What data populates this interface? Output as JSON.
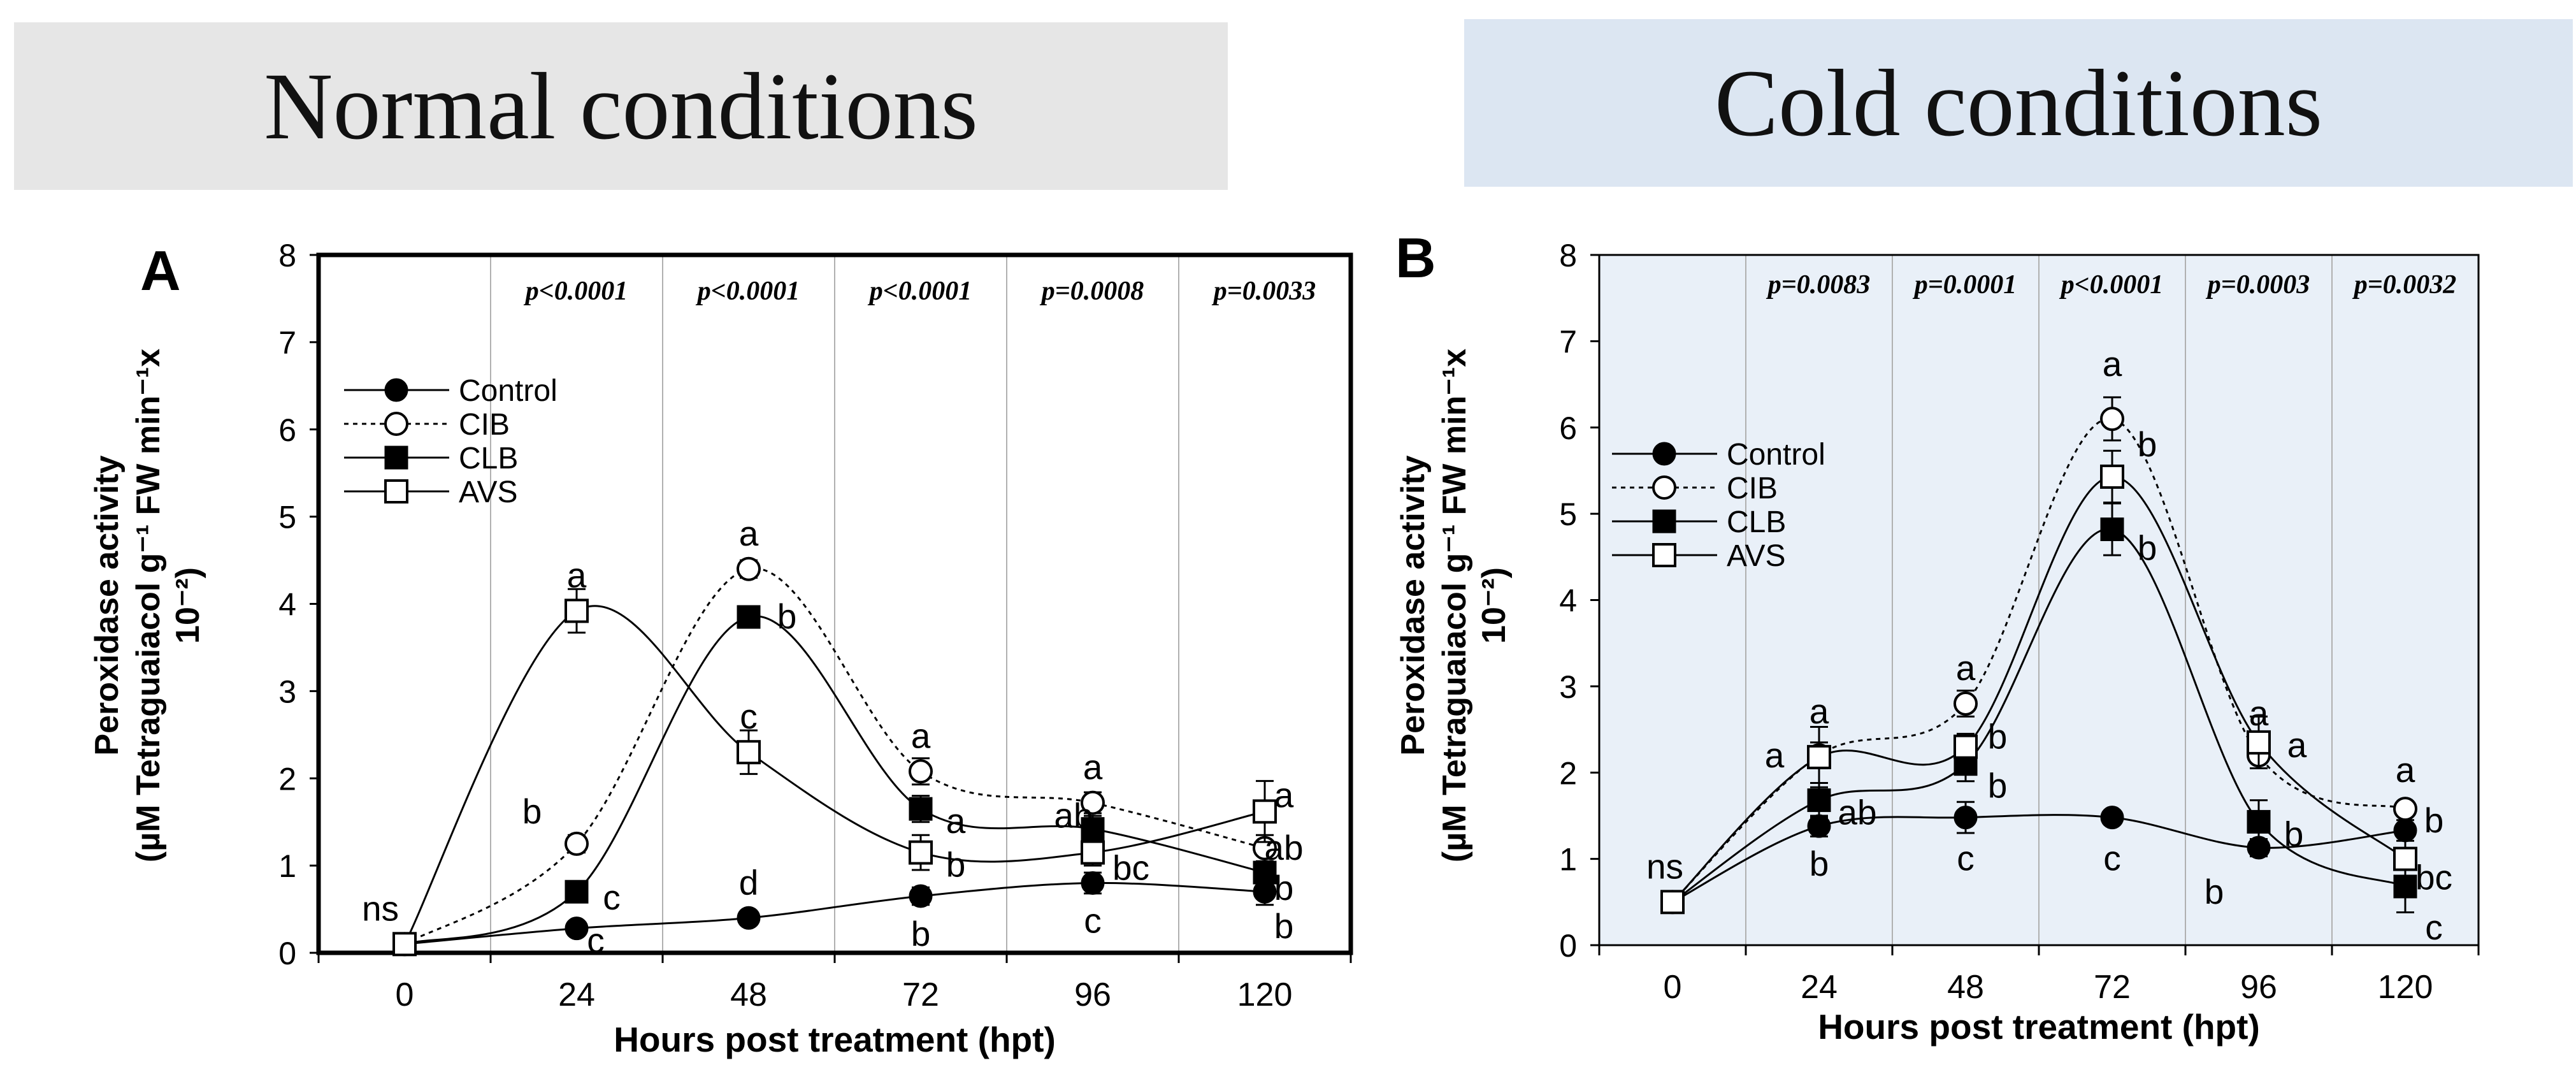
{
  "banners": {
    "left": "Normal conditions",
    "right": "Cold conditions"
  },
  "chart_data": [
    {
      "panel": "A",
      "type": "line",
      "title": "Normal conditions",
      "xlabel": "Hours post treatment (hpt)",
      "ylabel_line1": "Peroxidase activity",
      "ylabel_line2": "(µM Tetraguaiacol g⁻¹ FW min⁻¹x",
      "ylabel_line3": "10⁻²)",
      "ylim": [
        0,
        8
      ],
      "yticks": [
        "0",
        "1",
        "2",
        "3",
        "4",
        "5",
        "6",
        "7",
        "8"
      ],
      "x": [
        0,
        24,
        48,
        72,
        96,
        120
      ],
      "xticks": [
        "0",
        "24",
        "48",
        "72",
        "96",
        "120"
      ],
      "background": "#ffffff",
      "pvalues": [
        "p<0.0001",
        "p<0.0001",
        "p<0.0001",
        "p=0.0008",
        "p=0.0033"
      ],
      "legend_position": "top-left",
      "series": [
        {
          "name": "Control",
          "marker": "filled-circle",
          "line": "solid",
          "values": [
            0.1,
            0.28,
            0.4,
            0.65,
            0.8,
            0.7
          ],
          "errors": [
            0,
            0.06,
            0.08,
            0.1,
            0.12,
            0.15
          ],
          "letters": [
            "ns",
            "c",
            "d",
            "b",
            "c",
            "b"
          ]
        },
        {
          "name": "CIB",
          "marker": "open-circle",
          "line": "dotted",
          "values": [
            0.1,
            1.25,
            4.4,
            2.08,
            1.72,
            1.2
          ],
          "errors": [
            0,
            0.1,
            0.1,
            0.15,
            0.12,
            0.15
          ],
          "letters": [
            "",
            "b",
            "a",
            "a",
            "a",
            "ab"
          ]
        },
        {
          "name": "CLB",
          "marker": "filled-square",
          "line": "solid",
          "values": [
            0.1,
            0.7,
            3.85,
            1.65,
            1.42,
            0.92
          ],
          "errors": [
            0,
            0.06,
            0.08,
            0.15,
            0.15,
            0.12
          ],
          "letters": [
            "",
            "c",
            "b",
            "a",
            "ab",
            "b"
          ]
        },
        {
          "name": "AVS",
          "marker": "open-square",
          "line": "solid",
          "values": [
            0.1,
            3.92,
            2.3,
            1.15,
            1.15,
            1.62
          ],
          "errors": [
            0,
            0.25,
            0.25,
            0.2,
            0.15,
            0.35
          ],
          "letters": [
            "",
            "a",
            "c",
            "b",
            "bc",
            "a"
          ]
        }
      ]
    },
    {
      "panel": "B",
      "type": "line",
      "title": "Cold conditions",
      "xlabel": "Hours post treatment (hpt)",
      "ylabel_line1": "Peroxidase activity",
      "ylabel_line2": "(µM Tetraguaiacol g⁻¹ FW min⁻¹x",
      "ylabel_line3": "10⁻²)",
      "ylim": [
        0,
        8
      ],
      "yticks": [
        "0",
        "1",
        "2",
        "3",
        "4",
        "5",
        "6",
        "7",
        "8"
      ],
      "x": [
        0,
        24,
        48,
        72,
        96,
        120
      ],
      "xticks": [
        "0",
        "24",
        "48",
        "72",
        "96",
        "120"
      ],
      "background": "#e9f0f8",
      "pvalues": [
        "p=0.0083",
        "p=0.0001",
        "p<0.0001",
        "p=0.0003",
        "p=0.0032"
      ],
      "legend_position": "top-left",
      "series": [
        {
          "name": "Control",
          "marker": "filled-circle",
          "line": "solid",
          "values": [
            0.5,
            1.38,
            1.48,
            1.48,
            1.13,
            1.33
          ],
          "errors": [
            0,
            0.12,
            0.18,
            0.05,
            0.1,
            0.12
          ],
          "letters": [
            "ns",
            "b",
            "c",
            "c",
            "b",
            "b"
          ]
        },
        {
          "name": "CIB",
          "marker": "open-circle",
          "line": "dotted",
          "values": [
            0.5,
            2.2,
            2.8,
            6.1,
            2.2,
            1.58
          ],
          "errors": [
            0,
            0.15,
            0.15,
            0.25,
            0.15,
            0.08
          ],
          "letters": [
            "",
            "a",
            "a",
            "a",
            "a",
            "a"
          ]
        },
        {
          "name": "CLB",
          "marker": "filled-square",
          "line": "solid",
          "values": [
            0.5,
            1.68,
            2.1,
            4.82,
            1.43,
            0.68
          ],
          "errors": [
            0,
            0.2,
            0.2,
            0.3,
            0.25,
            0.3
          ],
          "letters": [
            "",
            "ab",
            "b",
            "b",
            "b",
            "c"
          ]
        },
        {
          "name": "AVS",
          "marker": "open-square",
          "line": "solid",
          "values": [
            0.5,
            2.18,
            2.3,
            5.43,
            2.35,
            1.0
          ],
          "errors": [
            0,
            0.35,
            0.15,
            0.3,
            0.3,
            0.25
          ],
          "letters": [
            "",
            "a",
            "b",
            "b",
            "a",
            "bc"
          ]
        }
      ]
    }
  ]
}
